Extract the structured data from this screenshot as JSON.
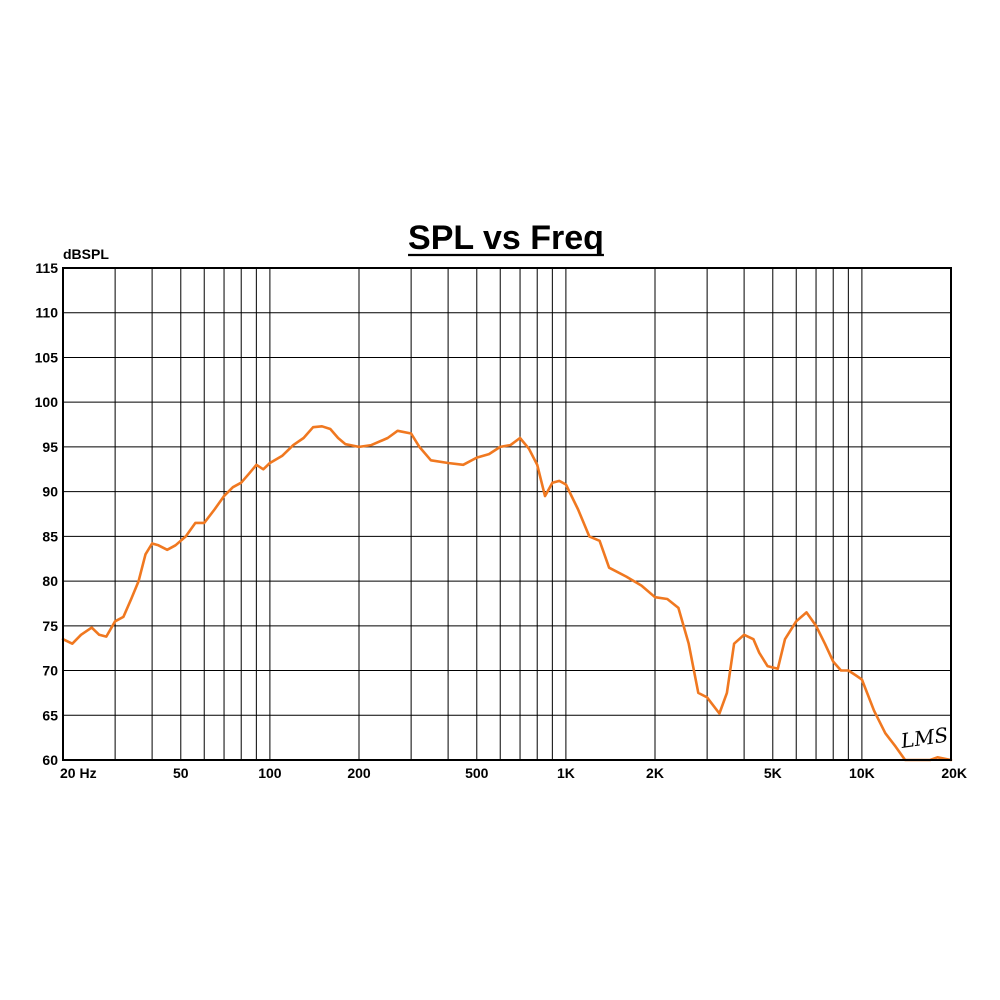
{
  "chart_data": {
    "type": "line",
    "title": "SPL vs Freq",
    "ylabel": "dBSPL",
    "xlabel": "",
    "xscale": "log",
    "xlim": [
      20,
      20000
    ],
    "ylim": [
      60,
      115
    ],
    "grid": true,
    "x_ticks": [
      {
        "value": 20,
        "label": "20  Hz"
      },
      {
        "value": 50,
        "label": "50"
      },
      {
        "value": 100,
        "label": "100"
      },
      {
        "value": 200,
        "label": "200"
      },
      {
        "value": 500,
        "label": "500"
      },
      {
        "value": 1000,
        "label": "1K"
      },
      {
        "value": 2000,
        "label": "2K"
      },
      {
        "value": 5000,
        "label": "5K"
      },
      {
        "value": 10000,
        "label": "10K"
      },
      {
        "value": 20000,
        "label": "20K"
      }
    ],
    "y_ticks": [
      {
        "value": 60,
        "label": "60"
      },
      {
        "value": 65,
        "label": "65"
      },
      {
        "value": 70,
        "label": "70"
      },
      {
        "value": 75,
        "label": "75"
      },
      {
        "value": 80,
        "label": "80"
      },
      {
        "value": 85,
        "label": "85"
      },
      {
        "value": 90,
        "label": "90"
      },
      {
        "value": 95,
        "label": "95"
      },
      {
        "value": 100,
        "label": "100"
      },
      {
        "value": 105,
        "label": "105"
      },
      {
        "value": 110,
        "label": "110"
      },
      {
        "value": 115,
        "label": "115"
      }
    ],
    "series": [
      {
        "color": "#f07820",
        "x": [
          20,
          21.5,
          23,
          25,
          26.5,
          28,
          30,
          32,
          34,
          36,
          38,
          40,
          42,
          45,
          48,
          52,
          56,
          60,
          65,
          70,
          75,
          80,
          85,
          90,
          95,
          100,
          110,
          120,
          130,
          140,
          150,
          160,
          170,
          180,
          200,
          220,
          250,
          270,
          300,
          320,
          350,
          400,
          450,
          500,
          550,
          600,
          650,
          700,
          750,
          800,
          850,
          900,
          950,
          1000,
          1100,
          1200,
          1300,
          1400,
          1600,
          1800,
          2000,
          2200,
          2400,
          2600,
          2800,
          3000,
          3300,
          3500,
          3700,
          4000,
          4300,
          4500,
          4800,
          5200,
          5500,
          6000,
          6500,
          7000,
          7500,
          8000,
          8500,
          9000,
          9500,
          10000,
          11000,
          12000,
          13000,
          14000,
          15000,
          17000,
          18000,
          20000
        ],
        "y": [
          73.5,
          73.0,
          74.0,
          74.8,
          74.0,
          73.8,
          75.5,
          76.0,
          78.0,
          80.0,
          83.0,
          84.2,
          84.0,
          83.5,
          84.0,
          85.0,
          86.5,
          86.5,
          88.0,
          89.5,
          90.5,
          91.0,
          92.0,
          93.0,
          92.5,
          93.2,
          94.0,
          95.2,
          96.0,
          97.2,
          97.3,
          97.0,
          96.0,
          95.3,
          95.0,
          95.2,
          96.0,
          96.8,
          96.5,
          95.0,
          93.5,
          93.2,
          93.0,
          93.8,
          94.2,
          95.0,
          95.2,
          96.0,
          94.8,
          93.0,
          89.5,
          91.0,
          91.2,
          90.8,
          88.0,
          85.0,
          84.5,
          81.5,
          80.5,
          79.5,
          78.2,
          78.0,
          77.0,
          73.0,
          67.5,
          67.0,
          65.2,
          67.5,
          73.0,
          74.0,
          73.5,
          72.0,
          70.5,
          70.2,
          73.5,
          75.5,
          76.5,
          75.0,
          73.0,
          71.0,
          70.0,
          70.0,
          69.5,
          69.0,
          65.5,
          63.0,
          61.5,
          60.0,
          60.0,
          60.0,
          60.3,
          60.0
        ]
      }
    ],
    "watermark": "LMS"
  }
}
